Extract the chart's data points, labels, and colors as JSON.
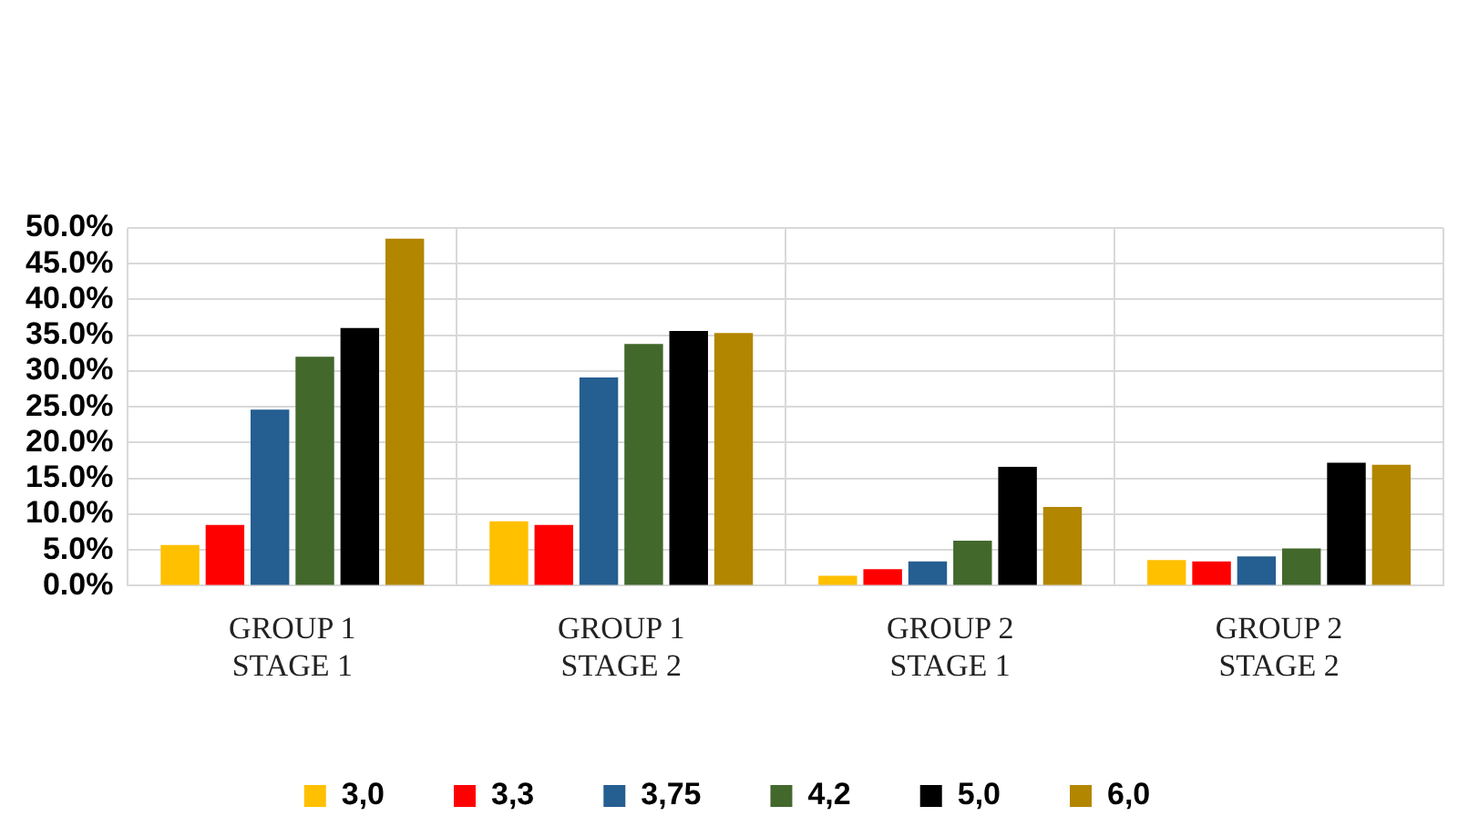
{
  "chart_data": {
    "type": "bar",
    "categories": [
      "GROUP 1\nSTAGE 1",
      "GROUP 1\nSTAGE 2",
      "GROUP 2\nSTAGE 1",
      "GROUP 2\nSTAGE 2"
    ],
    "series": [
      {
        "name": "3,0",
        "color": "#ffc000",
        "values": [
          5.7,
          9.0,
          1.4,
          3.6
        ]
      },
      {
        "name": "3,3",
        "color": "#ff0000",
        "values": [
          8.5,
          8.5,
          2.3,
          3.4
        ]
      },
      {
        "name": "3,75",
        "color": "#255e91",
        "values": [
          24.6,
          29.1,
          3.4,
          4.1
        ]
      },
      {
        "name": "4,2",
        "color": "#43682b",
        "values": [
          32.0,
          33.8,
          6.3,
          5.2
        ]
      },
      {
        "name": "5,0",
        "color": "#000000",
        "values": [
          36.0,
          35.6,
          16.6,
          17.2
        ]
      },
      {
        "name": "6,0",
        "color": "#b38600",
        "values": [
          48.5,
          35.3,
          11.0,
          16.9
        ]
      }
    ],
    "ylim": [
      0,
      50
    ],
    "yticks": [
      {
        "value": 0,
        "label": "0.0%"
      },
      {
        "value": 5,
        "label": "5.0%"
      },
      {
        "value": 10,
        "label": "10.0%"
      },
      {
        "value": 15,
        "label": "15.0%"
      },
      {
        "value": 20,
        "label": "20.0%"
      },
      {
        "value": 25,
        "label": "25.0%"
      },
      {
        "value": 30,
        "label": "30.0%"
      },
      {
        "value": 35,
        "label": "35.0%"
      },
      {
        "value": 40,
        "label": "40.0%"
      },
      {
        "value": 45,
        "label": "45.0%"
      },
      {
        "value": 50,
        "label": "50.0%"
      }
    ],
    "grid": true,
    "legend": "bottom"
  }
}
